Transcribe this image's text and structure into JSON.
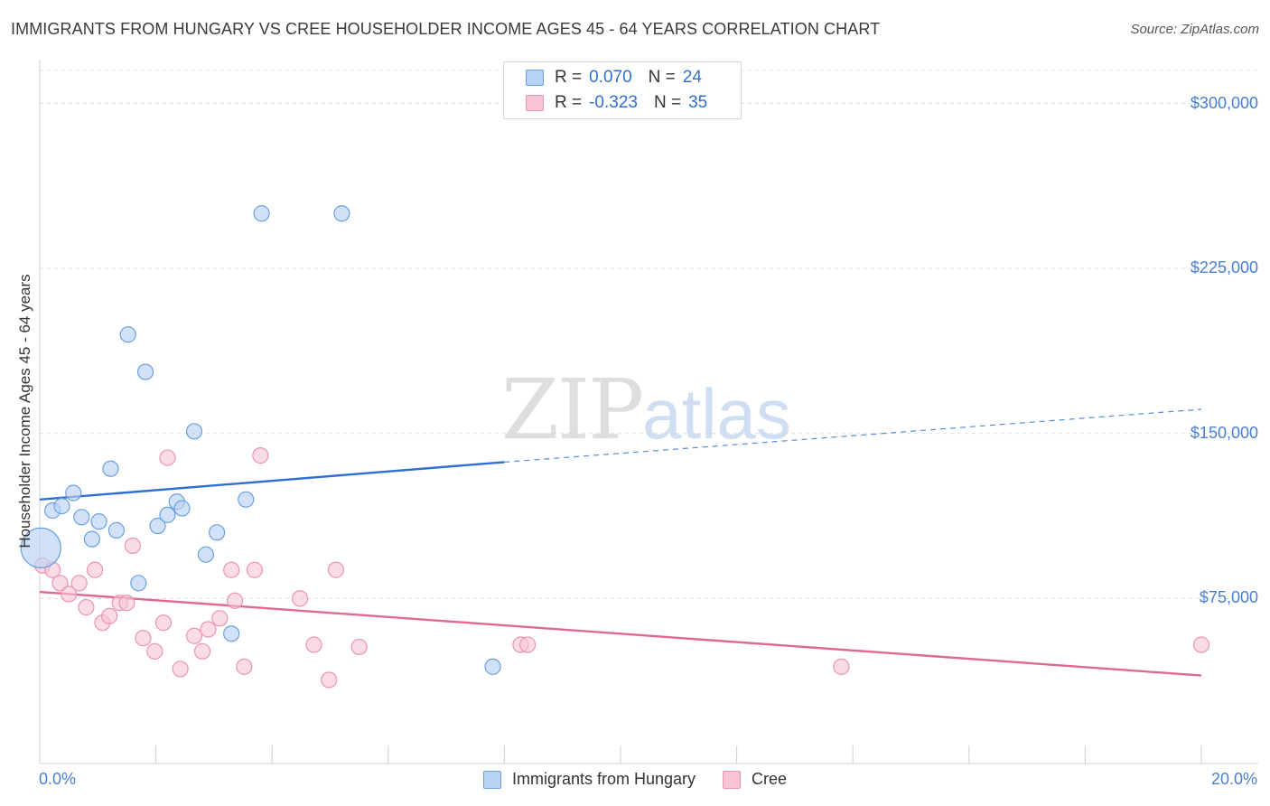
{
  "title": "IMMIGRANTS FROM HUNGARY VS CREE HOUSEHOLDER INCOME AGES 45 - 64 YEARS CORRELATION CHART",
  "source": "Source: ZipAtlas.com",
  "watermark": {
    "zip": "ZIP",
    "atlas": "atlas"
  },
  "legend": {
    "series1": {
      "r_label": "R =",
      "r_value": "0.070",
      "n_label": "N =",
      "n_value": "24"
    },
    "series2": {
      "r_label": "R =",
      "r_value": "-0.323",
      "n_label": "N =",
      "n_value": "35"
    }
  },
  "bottom_legend": {
    "series1": "Immigrants from Hungary",
    "series2": "Cree"
  },
  "colors": {
    "blue_fill": "#b8d2f5",
    "blue_stroke": "#6c9fe0",
    "blue_line": "#2f6fd1",
    "pink_fill": "#f8c4d4",
    "pink_stroke": "#e994b0",
    "pink_line": "#e06891",
    "tick_text": "#4a7fd4"
  },
  "chart_data": {
    "type": "scatter",
    "title": "IMMIGRANTS FROM HUNGARY VS CREE HOUSEHOLDER INCOME AGES 45 - 64 YEARS CORRELATION CHART",
    "xlabel": "",
    "ylabel": "Householder Income Ages 45 - 64 years",
    "xlim": [
      0,
      20
    ],
    "ylim": [
      0,
      315000
    ],
    "x_tick_labels": {
      "min": "0.0%",
      "max": "20.0%"
    },
    "y_ticks": [
      {
        "value": 75000,
        "label": "$75,000"
      },
      {
        "value": 150000,
        "label": "$150,000"
      },
      {
        "value": 225000,
        "label": "$225,000"
      },
      {
        "value": 300000,
        "label": "$300,000"
      }
    ],
    "series": [
      {
        "name": "Immigrants from Hungary",
        "color": "blue",
        "points": [
          {
            "x": 0.02,
            "y": 98000,
            "big": true
          },
          {
            "x": 0.22,
            "y": 115000
          },
          {
            "x": 0.38,
            "y": 117000
          },
          {
            "x": 0.58,
            "y": 123000
          },
          {
            "x": 0.72,
            "y": 112000
          },
          {
            "x": 0.9,
            "y": 102000
          },
          {
            "x": 1.02,
            "y": 110000
          },
          {
            "x": 1.22,
            "y": 134000
          },
          {
            "x": 1.32,
            "y": 106000
          },
          {
            "x": 1.52,
            "y": 195000
          },
          {
            "x": 1.7,
            "y": 82000
          },
          {
            "x": 1.82,
            "y": 178000
          },
          {
            "x": 2.03,
            "y": 108000
          },
          {
            "x": 2.2,
            "y": 113000
          },
          {
            "x": 2.36,
            "y": 119000
          },
          {
            "x": 2.45,
            "y": 116000
          },
          {
            "x": 2.66,
            "y": 151000
          },
          {
            "x": 2.86,
            "y": 95000
          },
          {
            "x": 3.05,
            "y": 105000
          },
          {
            "x": 3.3,
            "y": 59000
          },
          {
            "x": 3.55,
            "y": 120000
          },
          {
            "x": 3.82,
            "y": 250000
          },
          {
            "x": 5.2,
            "y": 250000
          },
          {
            "x": 7.8,
            "y": 44000
          }
        ],
        "trend": {
          "x0": 0,
          "y0": 120000,
          "x1": 8.0,
          "y1": 137000,
          "x_dash_end": 20,
          "y_dash_end": 161000
        }
      },
      {
        "name": "Cree",
        "color": "pink",
        "points": [
          {
            "x": 0.05,
            "y": 90000
          },
          {
            "x": 0.22,
            "y": 88000
          },
          {
            "x": 0.35,
            "y": 82000
          },
          {
            "x": 0.5,
            "y": 77000
          },
          {
            "x": 0.68,
            "y": 82000
          },
          {
            "x": 0.8,
            "y": 71000
          },
          {
            "x": 0.95,
            "y": 88000
          },
          {
            "x": 1.08,
            "y": 64000
          },
          {
            "x": 1.2,
            "y": 67000
          },
          {
            "x": 1.38,
            "y": 73000
          },
          {
            "x": 1.5,
            "y": 73000
          },
          {
            "x": 1.6,
            "y": 99000
          },
          {
            "x": 1.78,
            "y": 57000
          },
          {
            "x": 1.98,
            "y": 51000
          },
          {
            "x": 2.13,
            "y": 64000
          },
          {
            "x": 2.2,
            "y": 139000
          },
          {
            "x": 2.42,
            "y": 43000
          },
          {
            "x": 2.66,
            "y": 58000
          },
          {
            "x": 2.8,
            "y": 51000
          },
          {
            "x": 2.9,
            "y": 61000
          },
          {
            "x": 3.1,
            "y": 66000
          },
          {
            "x": 3.3,
            "y": 88000
          },
          {
            "x": 3.36,
            "y": 74000
          },
          {
            "x": 3.52,
            "y": 44000
          },
          {
            "x": 3.7,
            "y": 88000
          },
          {
            "x": 3.8,
            "y": 140000
          },
          {
            "x": 4.48,
            "y": 75000
          },
          {
            "x": 4.72,
            "y": 54000
          },
          {
            "x": 4.98,
            "y": 38000
          },
          {
            "x": 5.1,
            "y": 88000
          },
          {
            "x": 5.5,
            "y": 53000
          },
          {
            "x": 8.28,
            "y": 54000
          },
          {
            "x": 8.4,
            "y": 54000
          },
          {
            "x": 13.8,
            "y": 44000
          },
          {
            "x": 20.0,
            "y": 54000
          }
        ],
        "trend": {
          "x0": 0,
          "y0": 78000,
          "x1": 20,
          "y1": 40000
        }
      }
    ]
  }
}
